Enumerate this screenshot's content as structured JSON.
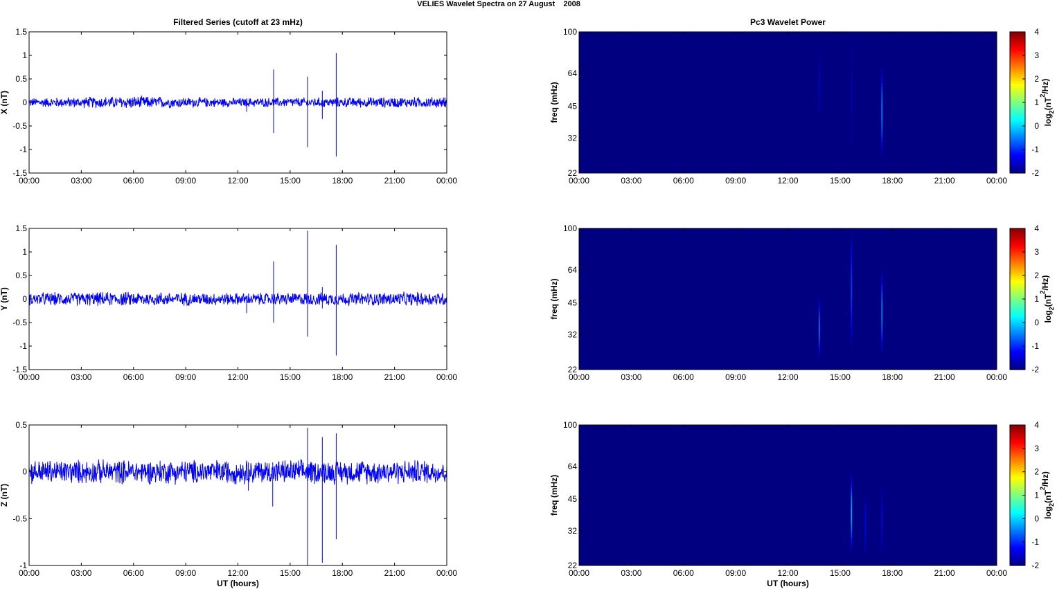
{
  "figure_title": "VELIES Wavelet Spectra on 27 August    2008",
  "chart_data": [
    {
      "type": "line",
      "panel": "X",
      "title": "Filtered Series (cutoff at 23 mHz)",
      "xlabel": "",
      "ylabel": "X (nT)",
      "x_ticks": [
        "00:00",
        "03:00",
        "06:00",
        "09:00",
        "12:00",
        "15:00",
        "18:00",
        "21:00",
        "00:00"
      ],
      "xlim": [
        0,
        24
      ],
      "ylim": [
        -1.5,
        1.5
      ],
      "y_ticks": [
        1.5,
        1,
        0.5,
        0,
        -0.5,
        -1,
        -1.5
      ],
      "y_tick_labels": [
        "1.5",
        "1",
        "0.5",
        "0",
        "-0.5",
        "-1",
        "-1.5"
      ],
      "color": "#0000ff",
      "noise": {
        "envelope_nT": [
          [
            0,
            0.09
          ],
          [
            6,
            0.13
          ],
          [
            9,
            0.1
          ],
          [
            12,
            0.09
          ],
          [
            24,
            0.11
          ]
        ]
      },
      "spikes": [
        {
          "x": 12.5,
          "ymin": -0.2,
          "ymax": 0.05
        },
        {
          "x": 14.05,
          "ymin": -0.65,
          "ymax": 0.7
        },
        {
          "x": 16.0,
          "ymin": -0.95,
          "ymax": 0.55
        },
        {
          "x": 16.85,
          "ymin": -0.35,
          "ymax": 0.25
        },
        {
          "x": 17.65,
          "ymin": -1.15,
          "ymax": 1.05
        }
      ]
    },
    {
      "type": "line",
      "panel": "Y",
      "title": "",
      "xlabel": "",
      "ylabel": "Y (nT)",
      "x_ticks": [
        "00:00",
        "03:00",
        "06:00",
        "09:00",
        "12:00",
        "15:00",
        "18:00",
        "21:00",
        "00:00"
      ],
      "xlim": [
        0,
        24
      ],
      "ylim": [
        -1.5,
        1.5
      ],
      "y_ticks": [
        1.5,
        1,
        0.5,
        0,
        -0.5,
        -1,
        -1.5
      ],
      "y_tick_labels": [
        "1.5",
        "1",
        "0.5",
        "0",
        "-0.5",
        "-1",
        "-1.5"
      ],
      "color": "#0000ff",
      "noise": {
        "envelope_nT": [
          [
            0,
            0.13
          ],
          [
            6,
            0.14
          ],
          [
            12,
            0.12
          ],
          [
            24,
            0.14
          ]
        ]
      },
      "spikes": [
        {
          "x": 12.5,
          "ymin": -0.3,
          "ymax": 0.05
        },
        {
          "x": 14.05,
          "ymin": -0.5,
          "ymax": 0.8
        },
        {
          "x": 16.0,
          "ymin": -0.8,
          "ymax": 1.45
        },
        {
          "x": 16.85,
          "ymin": -0.2,
          "ymax": 0.25
        },
        {
          "x": 17.65,
          "ymin": -1.2,
          "ymax": 1.15
        }
      ]
    },
    {
      "type": "line",
      "panel": "Z",
      "title": "",
      "xlabel": "UT (hours)",
      "ylabel": "Z (nT)",
      "x_ticks": [
        "00:00",
        "03:00",
        "06:00",
        "09:00",
        "12:00",
        "15:00",
        "18:00",
        "21:00",
        "00:00"
      ],
      "xlim": [
        0,
        24
      ],
      "ylim": [
        -1,
        0.5
      ],
      "y_ticks": [
        0.5,
        0,
        -0.5,
        -1
      ],
      "y_tick_labels": [
        "0.5",
        "0",
        "-0.5",
        "-1"
      ],
      "color": "#0000ff",
      "noise": {
        "envelope_nT": [
          [
            0,
            0.12
          ],
          [
            24,
            0.12
          ]
        ]
      },
      "spikes": [
        {
          "x": 12.6,
          "ymin": -0.2,
          "ymax": 0.1
        },
        {
          "x": 14.0,
          "ymin": -0.37,
          "ymax": 0.1
        },
        {
          "x": 16.0,
          "ymin": -1.0,
          "ymax": 0.47
        },
        {
          "x": 16.85,
          "ymin": -0.97,
          "ymax": 0.37
        },
        {
          "x": 17.65,
          "ymin": -0.72,
          "ymax": 0.41
        }
      ]
    },
    {
      "type": "heatmap",
      "panel": "X",
      "title": "Pc3 Wavelet Power",
      "xlabel": "",
      "ylabel": "freq (mHz)",
      "x_ticks": [
        "00:00",
        "03:00",
        "06:00",
        "09:00",
        "12:00",
        "15:00",
        "18:00",
        "21:00",
        "00:00"
      ],
      "xlim": [
        0,
        24
      ],
      "ylim_mHz": [
        22,
        100
      ],
      "y_scale": "log",
      "y_ticks": [
        100,
        64,
        45,
        32,
        22
      ],
      "colorbar": {
        "label_prefix": "log",
        "label_sub": "2",
        "label_mid": "(nT",
        "label_sup": "2",
        "label_suffix": "/Hz)",
        "ticks": [
          4,
          3,
          2,
          1,
          0,
          -1,
          -2
        ],
        "range": [
          -2,
          4
        ],
        "colormap": "jet"
      },
      "background_value": -2,
      "features": [
        {
          "x": 13.8,
          "fmin": 35,
          "fmax": 80,
          "peak": -1.5
        },
        {
          "x": 15.65,
          "fmin": 22,
          "fmax": 100,
          "peak": -1.7
        },
        {
          "x": 17.4,
          "fmin": 22,
          "fmax": 70,
          "peak": -0.5
        }
      ]
    },
    {
      "type": "heatmap",
      "panel": "Y",
      "title": "",
      "xlabel": "",
      "ylabel": "freq (mHz)",
      "x_ticks": [
        "00:00",
        "03:00",
        "06:00",
        "09:00",
        "12:00",
        "15:00",
        "18:00",
        "21:00",
        "00:00"
      ],
      "xlim": [
        0,
        24
      ],
      "ylim_mHz": [
        22,
        100
      ],
      "y_scale": "log",
      "y_ticks": [
        100,
        64,
        45,
        32,
        22
      ],
      "colorbar": {
        "label_prefix": "log",
        "label_sub": "2",
        "label_mid": "(nT",
        "label_sup": "2",
        "label_suffix": "/Hz)",
        "ticks": [
          4,
          3,
          2,
          1,
          0,
          -1,
          -2
        ],
        "range": [
          -2,
          4
        ],
        "colormap": "jet"
      },
      "background_value": -2,
      "features": [
        {
          "x": 13.8,
          "fmin": 22,
          "fmax": 48,
          "peak": -0.6
        },
        {
          "x": 15.65,
          "fmin": 22,
          "fmax": 100,
          "peak": -0.9
        },
        {
          "x": 17.4,
          "fmin": 22,
          "fmax": 65,
          "peak": -0.5
        }
      ]
    },
    {
      "type": "heatmap",
      "panel": "Z",
      "title": "",
      "xlabel": "UT (hours)",
      "ylabel": "freq (mHz)",
      "x_ticks": [
        "00:00",
        "03:00",
        "06:00",
        "09:00",
        "12:00",
        "15:00",
        "18:00",
        "21:00",
        "00:00"
      ],
      "xlim": [
        0,
        24
      ],
      "ylim_mHz": [
        22,
        100
      ],
      "y_scale": "log",
      "y_ticks": [
        100,
        64,
        45,
        32,
        22
      ],
      "colorbar": {
        "label_prefix": "log",
        "label_sub": "2",
        "label_mid": "(nT",
        "label_sup": "2",
        "label_suffix": "/Hz)",
        "ticks": [
          4,
          3,
          2,
          1,
          0,
          -1,
          -2
        ],
        "range": [
          -2,
          4
        ],
        "colormap": "jet"
      },
      "background_value": -2,
      "features": [
        {
          "x": 15.65,
          "fmin": 22,
          "fmax": 60,
          "peak": -0.3
        },
        {
          "x": 16.45,
          "fmin": 22,
          "fmax": 48,
          "peak": -1.3
        },
        {
          "x": 17.4,
          "fmin": 22,
          "fmax": 52,
          "peak": -1.4
        }
      ]
    }
  ]
}
